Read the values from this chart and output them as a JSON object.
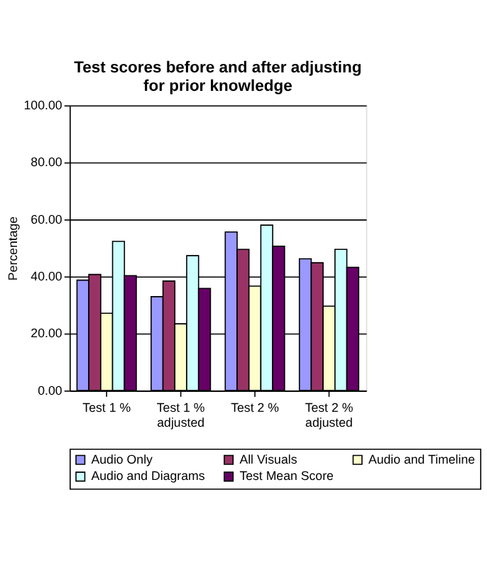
{
  "chart_data": {
    "type": "bar",
    "title": "Test scores before and after adjusting for prior knowledge",
    "ylabel": "Percentage",
    "categories": [
      "Test 1 %",
      "Test 1 % adjusted",
      "Test 2 %",
      "Test 2 % adjusted"
    ],
    "series": [
      {
        "name": "Audio Only",
        "color": "#9999ff",
        "values": [
          38.7,
          32.9,
          55.6,
          46.2
        ]
      },
      {
        "name": "All Visuals",
        "color": "#993366",
        "values": [
          40.7,
          38.4,
          49.5,
          44.8
        ]
      },
      {
        "name": "Audio and Timeline",
        "color": "#ffffcc",
        "values": [
          27.1,
          23.4,
          36.6,
          29.6
        ]
      },
      {
        "name": "Audio and Diagrams",
        "color": "#ccffff",
        "values": [
          52.3,
          47.3,
          58.0,
          49.5
        ]
      },
      {
        "name": "Test Mean Score",
        "color": "#660066",
        "values": [
          40.3,
          35.8,
          50.6,
          43.2
        ]
      }
    ],
    "ylim": [
      0,
      100
    ],
    "yticks": [
      {
        "value": 0,
        "label": "0.00"
      },
      {
        "value": 20,
        "label": "20.00"
      },
      {
        "value": 40,
        "label": "40.00"
      },
      {
        "value": 60,
        "label": "60.00"
      },
      {
        "value": 80,
        "label": "80.00"
      },
      {
        "value": 100,
        "label": "100.00"
      }
    ],
    "grid": "y",
    "legend": "bottom"
  }
}
